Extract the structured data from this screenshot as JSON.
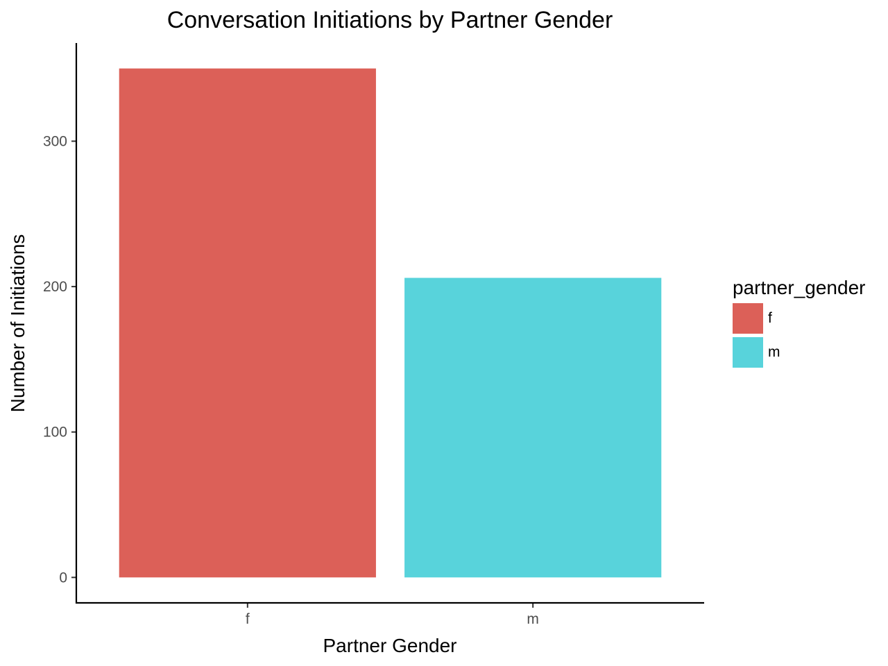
{
  "chart_data": {
    "type": "bar",
    "title": "Conversation Initiations by Partner Gender",
    "xlabel": "Partner Gender",
    "ylabel": "Number of Initiations",
    "categories": [
      "f",
      "m"
    ],
    "values": [
      350,
      206
    ],
    "colors": [
      "#DC6058",
      "#58D3DB"
    ],
    "ylim": [
      -17.5,
      367.5
    ],
    "yticks": [
      0,
      100,
      200,
      300
    ],
    "grid": false,
    "legend": {
      "title": "partner_gender",
      "position": "right",
      "entries": [
        {
          "label": "f",
          "color": "#DC6058"
        },
        {
          "label": "m",
          "color": "#58D3DB"
        }
      ]
    }
  }
}
